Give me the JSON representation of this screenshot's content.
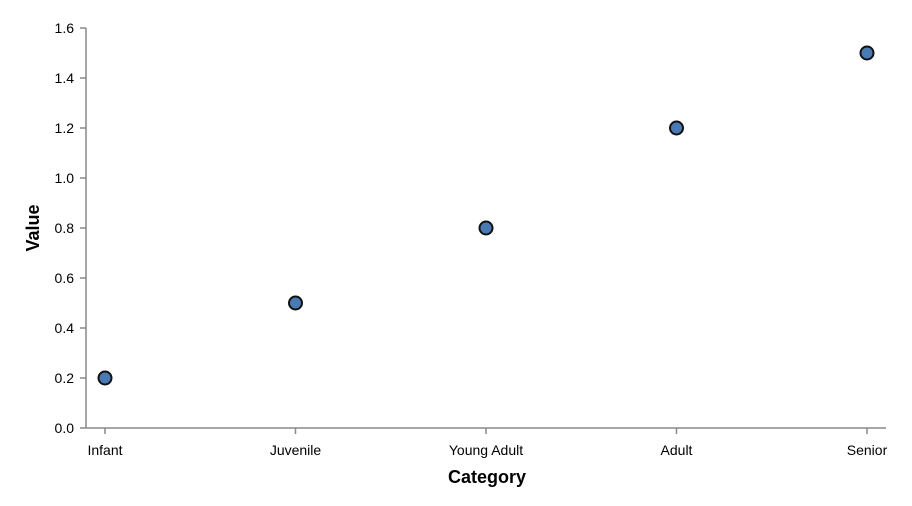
{
  "chart_data": {
    "type": "scatter",
    "title": "",
    "xlabel": "Category",
    "ylabel": "Value",
    "categories": [
      "Infant",
      "Juvenile",
      "Young Adult",
      "Adult",
      "Senior"
    ],
    "values": [
      0.2,
      0.5,
      0.8,
      1.2,
      1.5
    ],
    "ylim": [
      0,
      1.6
    ],
    "yticks": [
      "0.0",
      "0.2",
      "0.4",
      "0.6",
      "0.8",
      "1.0",
      "1.2",
      "1.4",
      "1.6"
    ],
    "grid": false,
    "point_color": "#4a7ab3"
  }
}
